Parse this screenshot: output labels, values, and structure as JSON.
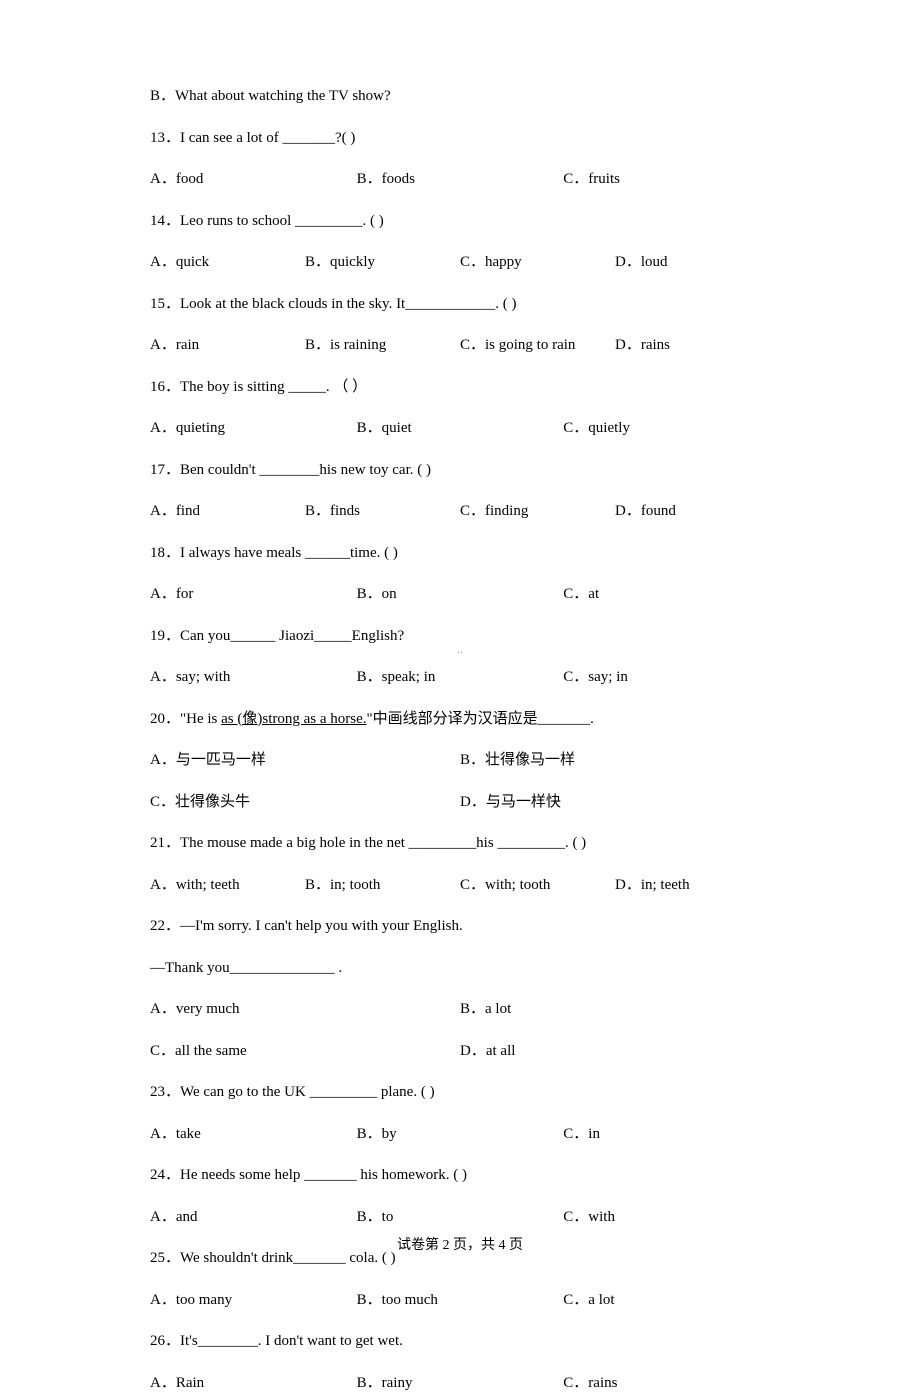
{
  "q12_opt_b": "B．What about watching the TV show?",
  "q13": {
    "stem": "13．I can see a lot of  _______?(     )",
    "a": "A．food",
    "b": "B．foods",
    "c": "C．fruits"
  },
  "q14": {
    "stem": "14．Leo runs to school _________. (   )",
    "a": "A．quick",
    "b": "B．quickly",
    "c": "C．happy",
    "d": "D．loud"
  },
  "q15": {
    "stem": "15．Look at the black clouds in the sky. It____________.  (  )",
    "a": "A．rain",
    "b": "B．is raining",
    "c": "C．is going to rain",
    "d": "D．rains"
  },
  "q16": {
    "stem": "16．The boy is sitting _____.    （     ）",
    "a": "A．quieting",
    "b": "B．quiet",
    "c": "C．quietly"
  },
  "q17": {
    "stem": "17．Ben couldn't ________his new toy car. (    )",
    "a": "A．find",
    "b": "B．finds",
    "c": "C．finding",
    "d": "D．found"
  },
  "q18": {
    "stem": "18．I always have meals ______time. (    )",
    "a": "A．for",
    "b": "B．on",
    "c": "C．at"
  },
  "q19": {
    "stem": "19．Can you______ Jiaozi_____English?",
    "a": "A．say; with",
    "b": "B．speak; in",
    "c": "C．say; in"
  },
  "q20": {
    "stem_pre": "20．\"He is ",
    "stem_mid": "as (像)strong as a horse.",
    "stem_post": "\"中画线部分译为汉语应是_______.",
    "a": "A．与一匹马一样",
    "b": "B．壮得像马一样",
    "c": "C．壮得像头牛",
    "d": "D．与马一样快"
  },
  "q21": {
    "stem": "21．The mouse made a big hole in the net _________his _________. (   )",
    "a": "A．with; teeth",
    "b": "B．in; tooth",
    "c": "C．with; tooth",
    "d": "D．in; teeth"
  },
  "q22": {
    "stem1": "22．—I'm sorry. I can't help you with your English.",
    "stem2": "—Thank you______________ .",
    "a": "A．very much",
    "b": "B．a lot",
    "c": "C．all the same",
    "d": "D．at all"
  },
  "q23": {
    "stem": "23．We can go to the UK _________ plane. (   )",
    "a": "A．take",
    "b": "B．by",
    "c": "C．in"
  },
  "q24": {
    "stem": "24．He needs some help _______ his homework. (     )",
    "a": "A．and",
    "b": "B．to",
    "c": "C．with"
  },
  "q25": {
    "stem": "25．We shouldn't drink_______ cola. (    )",
    "a": "A．too many",
    "b": "B．too much",
    "c": "C．a lot"
  },
  "q26": {
    "stem": "26．It's________. I don't want to get wet.",
    "a": "A．Rain",
    "b": "B．rainy",
    "c": "C．rains"
  },
  "center_mark": "··",
  "footer": "试卷第 2 页，共 4 页"
}
